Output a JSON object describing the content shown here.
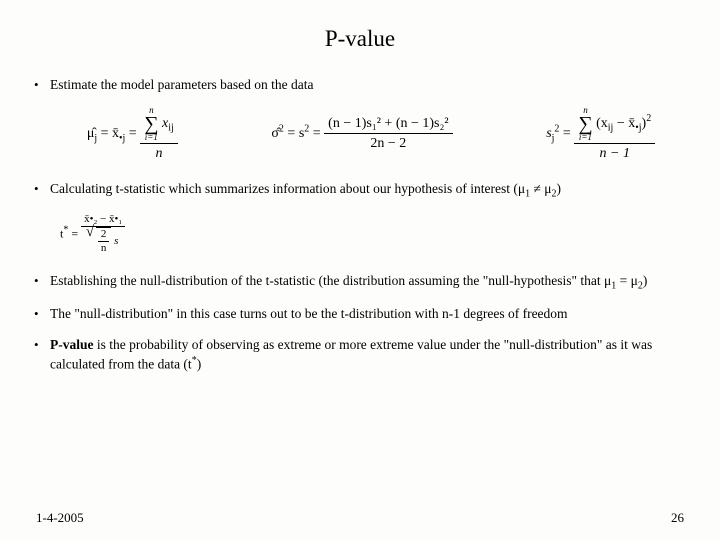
{
  "title": "P-value",
  "bullets": {
    "b1": "Estimate the model parameters based on the data",
    "b2_pre": "Calculating t-statistic which summarizes information about our hypothesis of interest (μ",
    "b2_s1": "1",
    "b2_mid": " ≠ μ",
    "b2_s2": "2",
    "b2_end": ")",
    "b3_pre": "Establishing the null-distribution of the t-statistic (the distribution assuming the \"null-hypothesis\" that μ",
    "b3_s1": "1",
    "b3_mid": " = μ",
    "b3_s2": "2",
    "b3_end": ")",
    "b4": "The \"null-distribution\" in this case turns out to be the t-distribution with n-1 degrees of freedom",
    "b5_strong": "P-value",
    "b5_rest": " is the probability of observing as extreme or more extreme value under the \"null-distribution\" as it was calculated from the data (t",
    "b5_sup": "*",
    "b5_end": ")"
  },
  "formulas": {
    "mu_lhs": "μ̂",
    "mu_sub": "j",
    "mu_eq": " = x̄",
    "mu_sub2": "•j",
    "mu_eq2": " = ",
    "mu_sum_top": "n",
    "mu_sum_bot": "i=1",
    "mu_num": "x",
    "mu_num_sub": "ij",
    "mu_den": "n",
    "sig_lhs": "σ̂",
    "sig_sup": "2",
    "sig_eq": " = s",
    "sig_eq2": " = ",
    "sig_num": "(n − 1)s₁² + (n − 1)s₂²",
    "sig_den": "2n − 2",
    "sj_lhs": "s",
    "sj_sub": "j",
    "sj_sup": "2",
    "sj_eq": " = ",
    "sj_sum_top": "n",
    "sj_sum_bot": "i=1",
    "sj_num_a": "(x",
    "sj_num_sub1": "ij",
    "sj_num_b": " − x̄",
    "sj_num_sub2": "•j",
    "sj_num_c": ")",
    "sj_num_sup": "2",
    "sj_den": "n − 1",
    "t_lhs": "t",
    "t_sup": "*",
    "t_eq": " = ",
    "t_num": "x̄•₂ − x̄•₁",
    "t_den_top": "2",
    "t_den_bot": "n",
    "t_s": "s"
  },
  "footer": {
    "date": "1-4-2005",
    "page": "26"
  }
}
